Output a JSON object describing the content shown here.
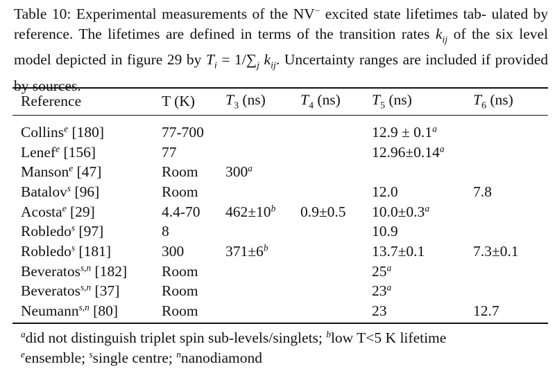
{
  "caption": {
    "label": "Table 10:",
    "line1": "Experimental measurements of the NV",
    "charge": "−",
    "line1_rest": "excited state lifetimes tab-",
    "line2_a": "ulated by reference. The lifetimes are defined in terms of the transition rates",
    "kij": "k",
    "ij": "ij",
    "line3_a": "of the six level model depicted in figure 29 by",
    "formula": "T_i = 1/∑_j k_ij",
    "line3_b": ". Uncertainty",
    "line4": "ranges are included if provided by sources."
  },
  "table": {
    "headers": [
      "Reference",
      "T (K)",
      "T3 (ns)",
      "T4 (ns)",
      "T5 (ns)",
      "T6 (ns)"
    ],
    "rows": [
      {
        "ref": "Collins",
        "sup": "e",
        "cite": "[180]",
        "t": "77-700",
        "t3": "",
        "t3sup": "",
        "t4": "",
        "t5": "12.9 ± 0.1",
        "t5sup": "a",
        "t6": ""
      },
      {
        "ref": "Lenef",
        "sup": "e",
        "cite": "[156]",
        "t": "77",
        "t3": "",
        "t3sup": "",
        "t4": "",
        "t5": "12.96±0.14",
        "t5sup": "a",
        "t6": ""
      },
      {
        "ref": "Manson",
        "sup": "e",
        "cite": "[47]",
        "t": "Room",
        "t3": "300",
        "t3sup": "a",
        "t4": "",
        "t5": "",
        "t5sup": "",
        "t6": ""
      },
      {
        "ref": "Batalov",
        "sup": "s",
        "cite": "[96]",
        "t": "Room",
        "t3": "",
        "t3sup": "",
        "t4": "",
        "t5": "12.0",
        "t5sup": "",
        "t6": "7.8"
      },
      {
        "ref": "Acosta",
        "sup": "e",
        "cite": "[29]",
        "t": "4.4-70",
        "t3": "462±10",
        "t3sup": "b",
        "t4": "0.9±0.5",
        "t5": "10.0±0.3",
        "t5sup": "a",
        "t6": ""
      },
      {
        "ref": "Robledo",
        "sup": "s",
        "cite": "[97]",
        "t": "8",
        "t3": "",
        "t3sup": "",
        "t4": "",
        "t5": "10.9",
        "t5sup": "",
        "t6": ""
      },
      {
        "ref": "Robledo",
        "sup": "s",
        "cite": "[181]",
        "t": "300",
        "t3": "371±6",
        "t3sup": "b",
        "t4": "",
        "t5": "13.7±0.1",
        "t5sup": "",
        "t6": "7.3±0.1"
      },
      {
        "ref": "Beveratos",
        "sup": "s,n",
        "cite": "[182]",
        "t": "Room",
        "t3": "",
        "t3sup": "",
        "t4": "",
        "t5": "25",
        "t5sup": "a",
        "t6": ""
      },
      {
        "ref": "Beveratos",
        "sup": "s,n",
        "cite": "[37]",
        "t": "Room",
        "t3": "",
        "t3sup": "",
        "t4": "",
        "t5": "23",
        "t5sup": "a",
        "t6": ""
      },
      {
        "ref": "Neumann",
        "sup": "s,n",
        "cite": "[80]",
        "t": "Room",
        "t3": "",
        "t3sup": "",
        "t4": "",
        "t5": "23",
        "t5sup": "",
        "t6": "12.7"
      }
    ]
  },
  "footnotes": {
    "line1": [
      {
        "sup": "a",
        "text": "did not distinguish triplet spin sub-levels/singlets; "
      },
      {
        "sup": "b",
        "text": "low T<5 K lifetime"
      }
    ],
    "line2": [
      {
        "sup": "e",
        "text": "ensemble; "
      },
      {
        "sup": "s",
        "text": "single centre; "
      },
      {
        "sup": "n",
        "text": "nanodiamond"
      }
    ]
  }
}
